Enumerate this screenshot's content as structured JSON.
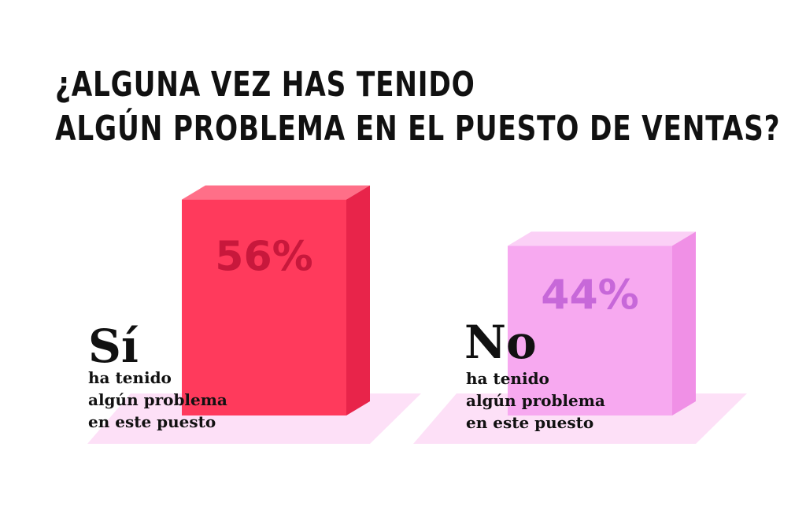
{
  "title_lines": [
    "¿ALGUNA VEZ HAS TENIDO",
    "ALGÚN PROBLEMA EN EL PUESTO DE VENTAS?"
  ],
  "chart_data": {
    "type": "bar",
    "categories": [
      "Sí",
      "No"
    ],
    "values": [
      56,
      44
    ],
    "value_labels": [
      "56%",
      "44%"
    ],
    "ylim": [
      0,
      100
    ],
    "descriptions": [
      [
        "ha tenido",
        "algún problema",
        "en este puesto"
      ],
      [
        "ha tenido",
        "algún problema",
        "en este puesto"
      ]
    ],
    "colors": {
      "si_front": "#ff3a5c",
      "si_top": "#ff6f88",
      "si_side": "#e8244a",
      "si_label": "#c8183c",
      "no_front": "#f7a9f0",
      "no_top": "#fbd0f6",
      "no_side": "#f090e6",
      "no_label": "#c768d9",
      "floor": "#fde0f7",
      "text": "#111111"
    }
  }
}
